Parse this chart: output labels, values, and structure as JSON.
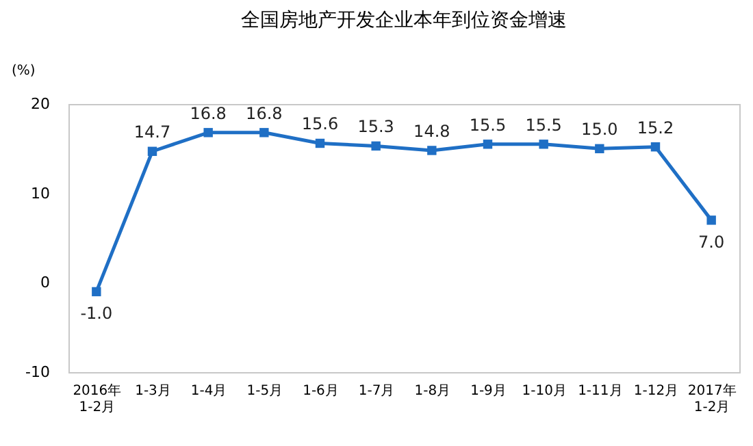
{
  "chart_data": {
    "type": "line",
    "title": "全国房地产开发企业本年到位资金增速",
    "ylabel": "(%)",
    "categories": [
      "2016年\n1-2月",
      "1-3月",
      "1-4月",
      "1-5月",
      "1-6月",
      "1-7月",
      "1-8月",
      "1-9月",
      "1-10月",
      "1-11月",
      "1-12月",
      "2017年\n1-2月"
    ],
    "series": [
      {
        "color": "#1f6fc5",
        "values": [
          -1.0,
          14.7,
          16.8,
          16.8,
          15.6,
          15.3,
          14.8,
          15.5,
          15.5,
          15.0,
          15.2,
          7.0
        ],
        "value_labels": [
          "-1.0",
          "14.7",
          "16.8",
          "16.8",
          "15.6",
          "15.3",
          "14.8",
          "15.5",
          "15.5",
          "15.0",
          "15.2",
          "7.0"
        ]
      }
    ],
    "ylim": [
      -10,
      20
    ],
    "yticks": [
      -10,
      0,
      10,
      20
    ],
    "marker": "square",
    "grid": false,
    "legend": false
  }
}
